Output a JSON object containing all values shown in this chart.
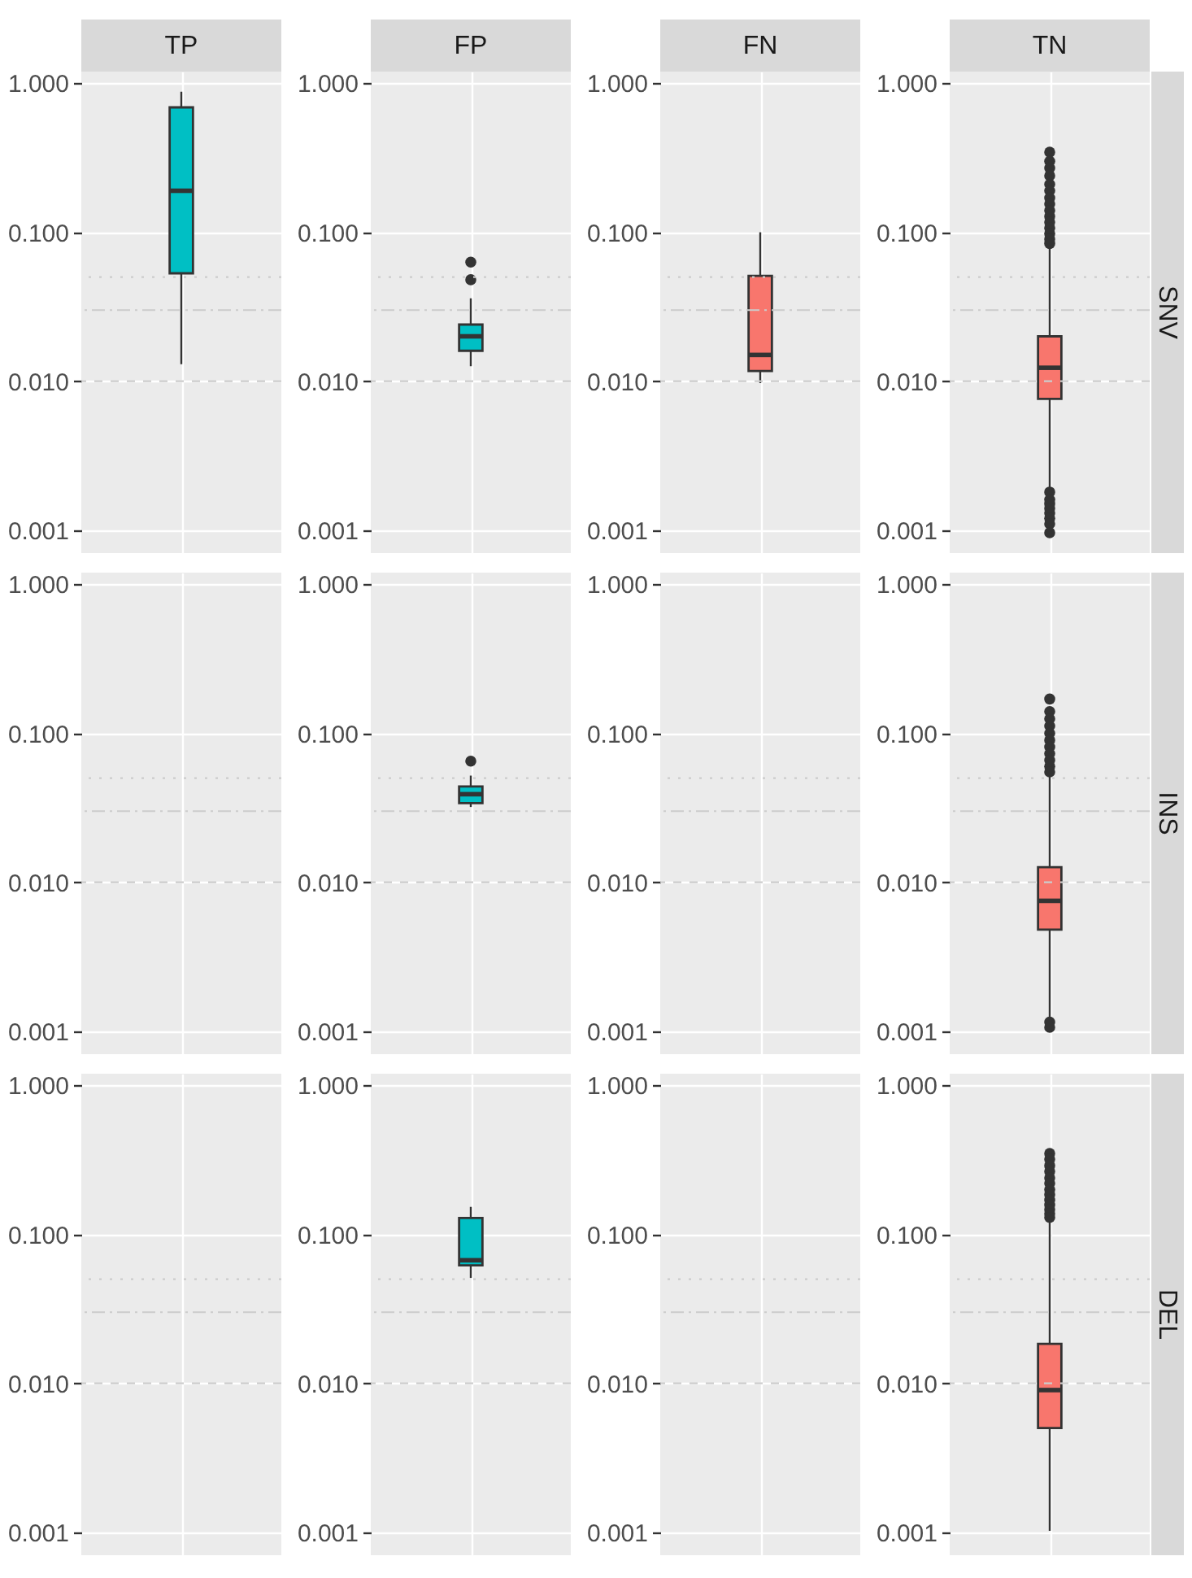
{
  "chart_data": [
    {
      "type": "box",
      "title": "TP",
      "categories": [
        null
      ],
      "tick_labels": "y",
      "log": true,
      "grid": true,
      "ylim": [
        0.0007,
        1.2
      ],
      "yticks": [
        {
          "value": 0.001,
          "label": "0.001"
        },
        {
          "value": 0.01,
          "label": "0.010"
        },
        {
          "value": 0.1,
          "label": "0.100"
        },
        {
          "value": 1,
          "label": "1.000"
        }
      ],
      "ref_lines": [
        {
          "axis": "y",
          "value": 0.01,
          "line_style": "dashed",
          "color": "#cccccc"
        },
        {
          "axis": "y",
          "value": 0.03,
          "line_style": "dashdot",
          "color": "#cccccc"
        },
        {
          "axis": "y",
          "value": 0.05,
          "line_style": "dotted",
          "color": "#cccccc"
        }
      ],
      "series": [
        {
          "type": "box",
          "color": "#00bfc4",
          "boxes": [
            {
              "low": 0.013,
              "q1": 0.053,
              "median": 0.19,
              "q3": 0.69,
              "high": 0.88
            }
          ]
        }
      ]
    },
    {
      "type": "box",
      "title": "FP",
      "categories": [
        null
      ],
      "tick_labels": "y",
      "log": true,
      "grid": true,
      "ylim": [
        0.0007,
        1.2
      ],
      "yticks": [
        {
          "value": 0.001,
          "label": "0.001"
        },
        {
          "value": 0.01,
          "label": "0.010"
        },
        {
          "value": 0.1,
          "label": "0.100"
        },
        {
          "value": 1,
          "label": "1.000"
        }
      ],
      "ref_lines": [
        {
          "axis": "y",
          "value": 0.01,
          "line_style": "dashed",
          "color": "#cccccc"
        },
        {
          "axis": "y",
          "value": 0.03,
          "line_style": "dashdot",
          "color": "#cccccc"
        },
        {
          "axis": "y",
          "value": 0.05,
          "line_style": "dotted",
          "color": "#cccccc"
        }
      ],
      "series": [
        {
          "type": "box",
          "color": "#00bfc4",
          "boxes": [
            {
              "low": 0.0126,
              "q1": 0.016,
              "median": 0.02,
              "q3": 0.024,
              "high": 0.036,
              "outliers": [
                0.048,
                0.063
              ]
            }
          ]
        }
      ]
    },
    {
      "type": "box",
      "title": "FN",
      "categories": [
        null
      ],
      "tick_labels": "y",
      "log": true,
      "grid": true,
      "ylim": [
        0.0007,
        1.2
      ],
      "yticks": [
        {
          "value": 0.001,
          "label": "0.001"
        },
        {
          "value": 0.01,
          "label": "0.010"
        },
        {
          "value": 0.1,
          "label": "0.100"
        },
        {
          "value": 1,
          "label": "1.000"
        }
      ],
      "ref_lines": [
        {
          "axis": "y",
          "value": 0.01,
          "line_style": "dashed",
          "color": "#cccccc"
        },
        {
          "axis": "y",
          "value": 0.03,
          "line_style": "dashdot",
          "color": "#cccccc"
        },
        {
          "axis": "y",
          "value": 0.05,
          "line_style": "dotted",
          "color": "#cccccc"
        }
      ],
      "series": [
        {
          "type": "box",
          "color": "#f8766d",
          "boxes": [
            {
              "low": 0.0097,
              "q1": 0.0117,
              "median": 0.015,
              "q3": 0.051,
              "high": 0.1
            }
          ]
        }
      ]
    },
    {
      "type": "box",
      "title": "TN",
      "y2label": "SNV",
      "categories": [
        null
      ],
      "tick_labels": "y",
      "log": true,
      "grid": true,
      "ylim": [
        0.0007,
        1.2
      ],
      "yticks": [
        {
          "value": 0.001,
          "label": "0.001"
        },
        {
          "value": 0.01,
          "label": "0.010"
        },
        {
          "value": 0.1,
          "label": "0.100"
        },
        {
          "value": 1,
          "label": "1.000"
        }
      ],
      "ref_lines": [
        {
          "axis": "y",
          "value": 0.01,
          "line_style": "dashed",
          "color": "#cccccc"
        },
        {
          "axis": "y",
          "value": 0.03,
          "line_style": "dashdot",
          "color": "#cccccc"
        },
        {
          "axis": "y",
          "value": 0.05,
          "line_style": "dotted",
          "color": "#cccccc"
        }
      ],
      "series": [
        {
          "type": "box",
          "color": "#f8766d",
          "boxes": [
            {
              "low": 0.0019,
              "q1": 0.0076,
              "median": 0.0123,
              "q3": 0.02,
              "high": 0.079,
              "outliers": [
                0.345,
                0.3,
                0.27,
                0.24,
                0.21,
                0.19,
                0.17,
                0.155,
                0.14,
                0.128,
                0.117,
                0.107,
                0.098,
                0.09,
                0.084,
                0.0018,
                0.0016,
                0.0015,
                0.0014,
                0.0013,
                0.0012,
                0.0011,
                0.00096
              ]
            }
          ]
        }
      ]
    },
    {
      "type": "box",
      "categories": [
        null
      ],
      "tick_labels": "y",
      "log": true,
      "grid": true,
      "ylim": [
        0.0007,
        1.2
      ],
      "yticks": [
        {
          "value": 0.001,
          "label": "0.001"
        },
        {
          "value": 0.01,
          "label": "0.010"
        },
        {
          "value": 0.1,
          "label": "0.100"
        },
        {
          "value": 1,
          "label": "1.000"
        }
      ],
      "ref_lines": [
        {
          "axis": "y",
          "value": 0.01,
          "line_style": "dashed",
          "color": "#cccccc"
        },
        {
          "axis": "y",
          "value": 0.03,
          "line_style": "dashdot",
          "color": "#cccccc"
        },
        {
          "axis": "y",
          "value": 0.05,
          "line_style": "dotted",
          "color": "#cccccc"
        }
      ]
    },
    {
      "type": "box",
      "categories": [
        null
      ],
      "tick_labels": "y",
      "log": true,
      "grid": true,
      "ylim": [
        0.0007,
        1.2
      ],
      "yticks": [
        {
          "value": 0.001,
          "label": "0.001"
        },
        {
          "value": 0.01,
          "label": "0.010"
        },
        {
          "value": 0.1,
          "label": "0.100"
        },
        {
          "value": 1,
          "label": "1.000"
        }
      ],
      "ref_lines": [
        {
          "axis": "y",
          "value": 0.01,
          "line_style": "dashed",
          "color": "#cccccc"
        },
        {
          "axis": "y",
          "value": 0.03,
          "line_style": "dashdot",
          "color": "#cccccc"
        },
        {
          "axis": "y",
          "value": 0.05,
          "line_style": "dotted",
          "color": "#cccccc"
        }
      ],
      "series": [
        {
          "type": "box",
          "color": "#00bfc4",
          "boxes": [
            {
              "low": 0.032,
              "q1": 0.034,
              "median": 0.039,
              "q3": 0.044,
              "high": 0.052,
              "outliers": [
                0.065
              ]
            }
          ]
        }
      ]
    },
    {
      "type": "box",
      "categories": [
        null
      ],
      "tick_labels": "y",
      "log": true,
      "grid": true,
      "ylim": [
        0.0007,
        1.2
      ],
      "yticks": [
        {
          "value": 0.001,
          "label": "0.001"
        },
        {
          "value": 0.01,
          "label": "0.010"
        },
        {
          "value": 0.1,
          "label": "0.100"
        },
        {
          "value": 1,
          "label": "1.000"
        }
      ],
      "ref_lines": [
        {
          "axis": "y",
          "value": 0.01,
          "line_style": "dashed",
          "color": "#cccccc"
        },
        {
          "axis": "y",
          "value": 0.03,
          "line_style": "dashdot",
          "color": "#cccccc"
        },
        {
          "axis": "y",
          "value": 0.05,
          "line_style": "dotted",
          "color": "#cccccc"
        }
      ]
    },
    {
      "type": "box",
      "y2label": "INS",
      "categories": [
        null
      ],
      "tick_labels": "y",
      "log": true,
      "grid": true,
      "ylim": [
        0.0007,
        1.2
      ],
      "yticks": [
        {
          "value": 0.001,
          "label": "0.001"
        },
        {
          "value": 0.01,
          "label": "0.010"
        },
        {
          "value": 0.1,
          "label": "0.100"
        },
        {
          "value": 1,
          "label": "1.000"
        }
      ],
      "ref_lines": [
        {
          "axis": "y",
          "value": 0.01,
          "line_style": "dashed",
          "color": "#cccccc"
        },
        {
          "axis": "y",
          "value": 0.03,
          "line_style": "dashdot",
          "color": "#cccccc"
        },
        {
          "axis": "y",
          "value": 0.05,
          "line_style": "dotted",
          "color": "#cccccc"
        }
      ],
      "series": [
        {
          "type": "box",
          "color": "#f8766d",
          "boxes": [
            {
              "low": 0.00125,
              "q1": 0.0048,
              "median": 0.0075,
              "q3": 0.0126,
              "high": 0.052,
              "outliers": [
                0.17,
                0.14,
                0.125,
                0.112,
                0.1,
                0.09,
                0.081,
                0.073,
                0.066,
                0.06,
                0.055,
                0.00115,
                0.00106
              ]
            }
          ]
        }
      ]
    },
    {
      "type": "box",
      "categories": [
        null
      ],
      "tick_labels": "y",
      "log": true,
      "grid": true,
      "ylim": [
        0.0007,
        1.2
      ],
      "yticks": [
        {
          "value": 0.001,
          "label": "0.001"
        },
        {
          "value": 0.01,
          "label": "0.010"
        },
        {
          "value": 0.1,
          "label": "0.100"
        },
        {
          "value": 1,
          "label": "1.000"
        }
      ],
      "ref_lines": [
        {
          "axis": "y",
          "value": 0.01,
          "line_style": "dashed",
          "color": "#cccccc"
        },
        {
          "axis": "y",
          "value": 0.03,
          "line_style": "dashdot",
          "color": "#cccccc"
        },
        {
          "axis": "y",
          "value": 0.05,
          "line_style": "dotted",
          "color": "#cccccc"
        }
      ]
    },
    {
      "type": "box",
      "categories": [
        null
      ],
      "tick_labels": "y",
      "log": true,
      "grid": true,
      "ylim": [
        0.0007,
        1.2
      ],
      "yticks": [
        {
          "value": 0.001,
          "label": "0.001"
        },
        {
          "value": 0.01,
          "label": "0.010"
        },
        {
          "value": 0.1,
          "label": "0.100"
        },
        {
          "value": 1,
          "label": "1.000"
        }
      ],
      "ref_lines": [
        {
          "axis": "y",
          "value": 0.01,
          "line_style": "dashed",
          "color": "#cccccc"
        },
        {
          "axis": "y",
          "value": 0.03,
          "line_style": "dashdot",
          "color": "#cccccc"
        },
        {
          "axis": "y",
          "value": 0.05,
          "line_style": "dotted",
          "color": "#cccccc"
        }
      ],
      "series": [
        {
          "type": "box",
          "color": "#00bfc4",
          "boxes": [
            {
              "low": 0.051,
              "q1": 0.062,
              "median": 0.067,
              "q3": 0.129,
              "high": 0.153
            }
          ]
        }
      ]
    },
    {
      "type": "box",
      "categories": [
        null
      ],
      "tick_labels": "y",
      "log": true,
      "grid": true,
      "ylim": [
        0.0007,
        1.2
      ],
      "yticks": [
        {
          "value": 0.001,
          "label": "0.001"
        },
        {
          "value": 0.01,
          "label": "0.010"
        },
        {
          "value": 0.1,
          "label": "0.100"
        },
        {
          "value": 1,
          "label": "1.000"
        }
      ],
      "ref_lines": [
        {
          "axis": "y",
          "value": 0.01,
          "line_style": "dashed",
          "color": "#cccccc"
        },
        {
          "axis": "y",
          "value": 0.03,
          "line_style": "dashdot",
          "color": "#cccccc"
        },
        {
          "axis": "y",
          "value": 0.05,
          "line_style": "dotted",
          "color": "#cccccc"
        }
      ]
    },
    {
      "type": "box",
      "y2label": "DEL",
      "categories": [
        null
      ],
      "tick_labels": "y",
      "log": true,
      "grid": true,
      "ylim": [
        0.0007,
        1.2
      ],
      "yticks": [
        {
          "value": 0.001,
          "label": "0.001"
        },
        {
          "value": 0.01,
          "label": "0.010"
        },
        {
          "value": 0.1,
          "label": "0.100"
        },
        {
          "value": 1,
          "label": "1.000"
        }
      ],
      "ref_lines": [
        {
          "axis": "y",
          "value": 0.01,
          "line_style": "dashed",
          "color": "#cccccc"
        },
        {
          "axis": "y",
          "value": 0.03,
          "line_style": "dashdot",
          "color": "#cccccc"
        },
        {
          "axis": "y",
          "value": 0.05,
          "line_style": "dotted",
          "color": "#cccccc"
        }
      ],
      "series": [
        {
          "type": "box",
          "color": "#f8766d",
          "boxes": [
            {
              "low": 0.00102,
              "q1": 0.005,
              "median": 0.009,
              "q3": 0.0184,
              "high": 0.125,
              "outliers": [
                0.35,
                0.32,
                0.29,
                0.265,
                0.24,
                0.22,
                0.2,
                0.185,
                0.17,
                0.158,
                0.147,
                0.138,
                0.13
              ]
            }
          ]
        }
      ]
    }
  ]
}
